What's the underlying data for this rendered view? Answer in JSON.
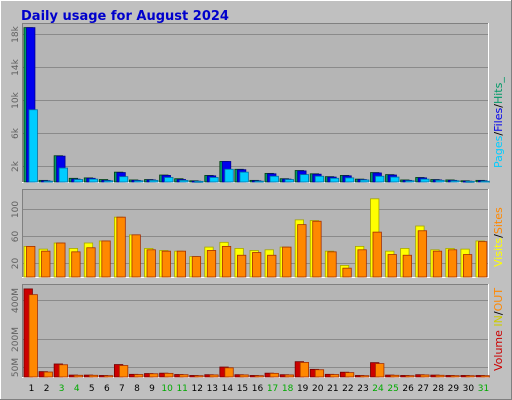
{
  "title": "Daily usage for August 2024",
  "colors": {
    "page_bg": "#c0c0c0",
    "plot_bg": "#b5b5b5",
    "title": "#0000cc",
    "pages": "#00ccff",
    "files": "#0000ee",
    "hits": "#009966",
    "visits": "#ffff00",
    "sites": "#ff8800",
    "in": "#cccc00",
    "out": "#ff8800",
    "volume": "#cc0000",
    "day_normal": "#000000",
    "day_weekend": "#00aa00"
  },
  "days": [
    "1",
    "2",
    "3",
    "4",
    "5",
    "6",
    "7",
    "8",
    "9",
    "10",
    "11",
    "12",
    "13",
    "14",
    "15",
    "16",
    "17",
    "18",
    "19",
    "20",
    "21",
    "22",
    "23",
    "24",
    "25",
    "26",
    "27",
    "28",
    "29",
    "30",
    "31"
  ],
  "weekend_days": [
    3,
    4,
    10,
    11,
    17,
    18,
    24,
    25,
    31
  ],
  "legend": {
    "top": [
      {
        "text": "Pages",
        "color": "pages"
      },
      {
        "text": "/",
        "color": "day_normal"
      },
      {
        "text": "Files",
        "color": "files"
      },
      {
        "text": "/",
        "color": "day_normal"
      },
      {
        "text": "Hits_",
        "color": "hits"
      }
    ],
    "middle": [
      {
        "text": "Visits",
        "color": "visits"
      },
      {
        "text": "/",
        "color": "day_normal"
      },
      {
        "text": "Sites",
        "color": "sites"
      }
    ],
    "bottom": [
      {
        "text": "Volume",
        "color": "volume"
      },
      {
        "text": "IN",
        "color": "in"
      },
      {
        "text": "/",
        "color": "day_normal"
      },
      {
        "text": "OUT",
        "color": "out"
      }
    ]
  },
  "chart_data": [
    {
      "type": "bar",
      "title": "",
      "ylim": [
        0,
        19000
      ],
      "yticks": [
        "2k",
        "6k",
        "10k",
        "14k",
        "18k"
      ],
      "ytick_values": [
        2000,
        6000,
        10000,
        14000,
        18000
      ],
      "categories": [
        "1",
        "2",
        "3",
        "4",
        "5",
        "6",
        "7",
        "8",
        "9",
        "10",
        "11",
        "12",
        "13",
        "14",
        "15",
        "16",
        "17",
        "18",
        "19",
        "20",
        "21",
        "22",
        "23",
        "24",
        "25",
        "26",
        "27",
        "28",
        "29",
        "30",
        "31"
      ],
      "series": [
        {
          "name": "Hits",
          "color": "hits",
          "values": [
            18800,
            200,
            3200,
            450,
            500,
            300,
            1200,
            250,
            300,
            850,
            400,
            150,
            800,
            2500,
            1550,
            200,
            1050,
            400,
            1400,
            1000,
            650,
            800,
            350,
            1150,
            900,
            250,
            550,
            300,
            250,
            150,
            200
          ]
        },
        {
          "name": "Files",
          "color": "files",
          "values": [
            18800,
            150,
            3150,
            350,
            450,
            200,
            1150,
            200,
            250,
            800,
            300,
            100,
            750,
            2500,
            1500,
            150,
            1000,
            350,
            1350,
            950,
            600,
            750,
            300,
            1100,
            850,
            200,
            500,
            250,
            200,
            100,
            150
          ]
        },
        {
          "name": "Pages",
          "color": "pages",
          "values": [
            8800,
            100,
            1700,
            300,
            350,
            150,
            650,
            150,
            200,
            550,
            200,
            80,
            550,
            1550,
            1200,
            100,
            700,
            300,
            900,
            700,
            450,
            500,
            250,
            700,
            600,
            150,
            350,
            200,
            150,
            80,
            100
          ]
        }
      ]
    },
    {
      "type": "bar",
      "title": "",
      "ylim": [
        0,
        125
      ],
      "yticks": [
        "20",
        "60",
        "100"
      ],
      "ytick_values": [
        20,
        60,
        100
      ],
      "categories": [
        "1",
        "2",
        "3",
        "4",
        "5",
        "6",
        "7",
        "8",
        "9",
        "10",
        "11",
        "12",
        "13",
        "14",
        "15",
        "16",
        "17",
        "18",
        "19",
        "20",
        "21",
        "22",
        "23",
        "24",
        "25",
        "26",
        "27",
        "28",
        "29",
        "30",
        "31"
      ],
      "series": [
        {
          "name": "Visits",
          "color": "visits",
          "values": [
            45,
            41,
            50,
            42,
            50,
            53,
            88,
            62,
            42,
            39,
            38,
            30,
            44,
            51,
            42,
            39,
            40,
            44,
            84,
            83,
            38,
            17,
            45,
            115,
            38,
            42,
            75,
            40,
            42,
            41,
            53
          ]
        },
        {
          "name": "Sites",
          "color": "sites",
          "values": [
            45,
            38,
            50,
            37,
            43,
            53,
            88,
            62,
            40,
            38,
            38,
            30,
            39,
            45,
            32,
            36,
            32,
            44,
            77,
            82,
            37,
            13,
            40,
            66,
            33,
            32,
            68,
            38,
            40,
            33,
            52
          ]
        }
      ]
    },
    {
      "type": "bar",
      "title": "",
      "ylim": [
        0,
        470
      ],
      "yticks": [
        "50M",
        "200M",
        "400M"
      ],
      "ytick_values": [
        50,
        200,
        400
      ],
      "categories": [
        "1",
        "2",
        "3",
        "4",
        "5",
        "6",
        "7",
        "8",
        "9",
        "10",
        "11",
        "12",
        "13",
        "14",
        "15",
        "16",
        "17",
        "18",
        "19",
        "20",
        "21",
        "22",
        "23",
        "24",
        "25",
        "26",
        "27",
        "28",
        "29",
        "30",
        "31"
      ],
      "series": [
        {
          "name": "Volume",
          "color": "volume",
          "values": [
            460,
            28,
            68,
            10,
            10,
            8,
            65,
            14,
            18,
            20,
            13,
            8,
            12,
            52,
            12,
            8,
            20,
            12,
            80,
            40,
            14,
            25,
            8,
            75,
            10,
            8,
            12,
            10,
            8,
            8,
            8
          ]
        },
        {
          "name": "IN",
          "color": "in",
          "values": [
            0,
            0,
            0,
            0,
            0,
            0,
            0,
            0,
            0,
            0,
            0,
            0,
            0,
            0,
            0,
            0,
            0,
            0,
            0,
            0,
            0,
            0,
            0,
            0,
            0,
            0,
            0,
            0,
            0,
            0,
            0
          ]
        },
        {
          "name": "OUT",
          "color": "out",
          "values": [
            430,
            26,
            64,
            9,
            9,
            7,
            60,
            13,
            17,
            19,
            12,
            7,
            11,
            48,
            11,
            7,
            19,
            11,
            76,
            38,
            13,
            23,
            7,
            70,
            9,
            7,
            11,
            9,
            7,
            7,
            7
          ]
        }
      ]
    }
  ]
}
